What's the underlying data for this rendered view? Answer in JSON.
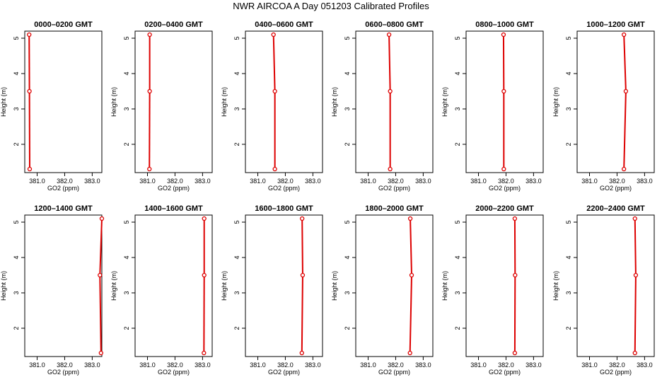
{
  "title": "NWR AIRCOA A  Day 051203  Calibrated Profiles",
  "chart_data": {
    "type": "line",
    "xlabel": "GO2 (ppm)",
    "ylabel": "Height (m)",
    "xlim": [
      380.55,
      383.35
    ],
    "ylim": [
      1.2,
      5.2
    ],
    "xticks": [
      381.0,
      382.0,
      383.0
    ],
    "xtick_labels": [
      "381.0",
      "382.0",
      "383.0"
    ],
    "yticks": [
      2,
      3,
      4,
      5
    ],
    "ytick_labels": [
      "2",
      "3",
      "4",
      "5"
    ],
    "series_color": "#dd0000",
    "panels": [
      {
        "title": "0000–0200 GMT",
        "heights": [
          1.3,
          3.5,
          5.1
        ],
        "values": [
          380.73,
          380.72,
          380.71
        ]
      },
      {
        "title": "0200–0400 GMT",
        "heights": [
          1.3,
          3.5,
          5.1
        ],
        "values": [
          381.07,
          381.08,
          381.08
        ]
      },
      {
        "title": "0400–0600 GMT",
        "heights": [
          1.3,
          3.5,
          5.1
        ],
        "values": [
          381.62,
          381.62,
          381.57
        ]
      },
      {
        "title": "0600–0800 GMT",
        "heights": [
          1.3,
          3.5,
          5.1
        ],
        "values": [
          381.8,
          381.8,
          381.76
        ]
      },
      {
        "title": "0800–1000 GMT",
        "heights": [
          1.3,
          3.5,
          5.1
        ],
        "values": [
          381.92,
          381.92,
          381.91
        ]
      },
      {
        "title": "1000–1200 GMT",
        "heights": [
          1.3,
          3.5,
          5.1
        ],
        "values": [
          382.25,
          382.32,
          382.25
        ]
      },
      {
        "title": "1200–1400 GMT",
        "heights": [
          1.3,
          3.5,
          5.1
        ],
        "values": [
          383.32,
          383.28,
          383.35
        ]
      },
      {
        "title": "1400–1600 GMT",
        "heights": [
          1.3,
          3.5,
          5.1
        ],
        "values": [
          383.05,
          383.06,
          383.06
        ]
      },
      {
        "title": "1600–1800 GMT",
        "heights": [
          1.3,
          3.5,
          5.1
        ],
        "values": [
          382.6,
          382.63,
          382.61
        ]
      },
      {
        "title": "1800–2000 GMT",
        "heights": [
          1.3,
          3.5,
          5.1
        ],
        "values": [
          382.52,
          382.58,
          382.53
        ]
      },
      {
        "title": "2000–2200 GMT",
        "heights": [
          1.3,
          3.5,
          5.1
        ],
        "values": [
          382.32,
          382.33,
          382.32
        ]
      },
      {
        "title": "2200–2400 GMT",
        "heights": [
          1.3,
          3.5,
          5.1
        ],
        "values": [
          382.65,
          382.68,
          382.65
        ]
      }
    ]
  }
}
